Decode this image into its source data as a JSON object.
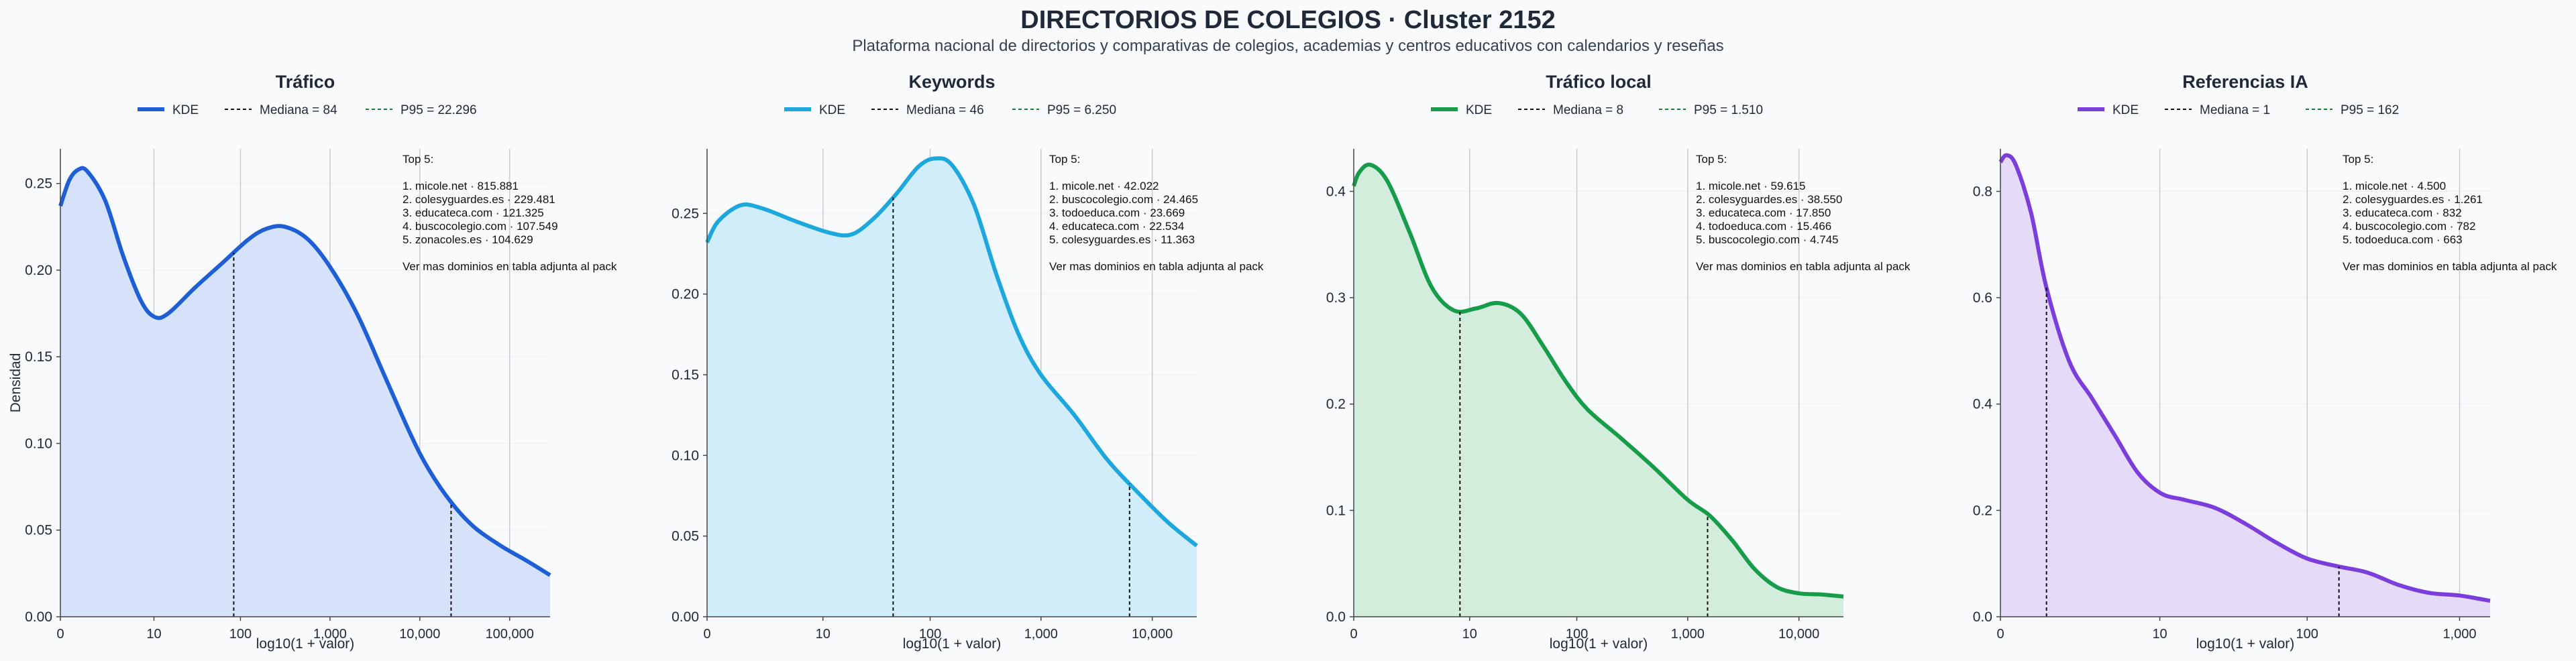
{
  "title": "DIRECTORIOS DE COLEGIOS · Cluster 2152",
  "subtitle": "Plataforma nacional de directorios y comparativas de colegios, academias y centros educativos con calendarios y reseñas",
  "ylabel_shared": "Densidad",
  "chart_data": [
    {
      "type": "area",
      "title": "Tráfico",
      "color": "#1f5fd6",
      "fill": "#d6e2fa",
      "xlabel": "log10(1 + valor)",
      "ylabel": "Densidad",
      "x_scale": "log10(1+x)",
      "xlim": [
        0,
        5.45
      ],
      "ylim": [
        0,
        0.27
      ],
      "xticks": [
        0,
        10,
        100,
        1000,
        10000,
        100000
      ],
      "xtick_labels": [
        "0",
        "10",
        "100",
        "1,000",
        "10,000",
        "100,000"
      ],
      "yticks": [
        0,
        0.05,
        0.1,
        0.15,
        0.2,
        0.25
      ],
      "ytick_labels": [
        "0.00",
        "0.05",
        "0.10",
        "0.15",
        "0.20",
        "0.25"
      ],
      "legend": {
        "kde": "KDE",
        "median": "Mediana = 84",
        "p95": "P95 = 22.296"
      },
      "median": 84,
      "p95": 22296,
      "x": [
        0,
        0.1,
        0.2,
        0.3,
        0.5,
        0.7,
        0.9,
        1.05,
        1.2,
        1.5,
        1.8,
        2.1,
        2.3,
        2.5,
        2.75,
        3.0,
        3.3,
        3.6,
        3.9,
        4.1,
        4.35,
        4.6,
        4.9,
        5.2,
        5.45
      ],
      "y": [
        0.237,
        0.252,
        0.258,
        0.257,
        0.24,
        0.208,
        0.182,
        0.173,
        0.175,
        0.19,
        0.204,
        0.218,
        0.224,
        0.225,
        0.218,
        0.202,
        0.175,
        0.14,
        0.105,
        0.085,
        0.066,
        0.052,
        0.041,
        0.032,
        0.024
      ],
      "annotation": [
        "Top 5:",
        "",
        "1. micole.net · 815.881",
        "2. colesyguardes.es · 229.481",
        "3. educateca.com · 121.325",
        "4. buscocolegio.com · 107.549",
        "5. zonacoles.es · 104.629",
        "",
        "Ver mas dominios en tabla adjunta al pack"
      ]
    },
    {
      "type": "area",
      "title": "Keywords",
      "color": "#1ca8dd",
      "fill": "#d2edfa",
      "xlabel": "log10(1 + valor)",
      "ylabel": "",
      "x_scale": "log10(1+x)",
      "xlim": [
        0,
        4.4
      ],
      "ylim": [
        0,
        0.29
      ],
      "xticks": [
        0,
        10,
        100,
        1000,
        10000
      ],
      "xtick_labels": [
        "0",
        "10",
        "100",
        "1,000",
        "10,000"
      ],
      "yticks": [
        0,
        0.05,
        0.1,
        0.15,
        0.2,
        0.25
      ],
      "ytick_labels": [
        "0.00",
        "0.05",
        "0.10",
        "0.15",
        "0.20",
        "0.25"
      ],
      "legend": {
        "kde": "KDE",
        "median": "Mediana = 46",
        "p95": "P95 = 6.250"
      },
      "median": 46,
      "p95": 6250,
      "x": [
        0,
        0.1,
        0.3,
        0.5,
        0.8,
        1.1,
        1.3,
        1.5,
        1.7,
        1.9,
        2.05,
        2.2,
        2.4,
        2.6,
        2.8,
        3.0,
        3.3,
        3.6,
        3.9,
        4.15,
        4.4
      ],
      "y": [
        0.232,
        0.245,
        0.255,
        0.253,
        0.245,
        0.238,
        0.237,
        0.247,
        0.262,
        0.279,
        0.284,
        0.28,
        0.255,
        0.212,
        0.175,
        0.15,
        0.125,
        0.097,
        0.075,
        0.058,
        0.044
      ],
      "annotation": [
        "Top 5:",
        "",
        "1. micole.net · 42.022",
        "2. buscocolegio.com · 24.465",
        "3. todoeduca.com · 23.669",
        "4. educateca.com · 22.534",
        "5. colesyguardes.es · 11.363",
        "",
        "Ver mas dominios en tabla adjunta al pack"
      ]
    },
    {
      "type": "area",
      "title": "Tráfico local",
      "color": "#179c4a",
      "fill": "#d2eddb",
      "xlabel": "log10(1 + valor)",
      "ylabel": "",
      "x_scale": "log10(1+x)",
      "xlim": [
        0,
        4.4
      ],
      "ylim": [
        0,
        0.44
      ],
      "xticks": [
        0,
        10,
        100,
        1000,
        10000
      ],
      "xtick_labels": [
        "0",
        "10",
        "100",
        "1,000",
        "10,000"
      ],
      "yticks": [
        0,
        0.1,
        0.2,
        0.3,
        0.4
      ],
      "ytick_labels": [
        "0.0",
        "0.1",
        "0.2",
        "0.3",
        "0.4"
      ],
      "legend": {
        "kde": "KDE",
        "median": "Mediana = 8",
        "p95": "P95 = 1.510"
      },
      "median": 8,
      "p95": 1510,
      "x": [
        0,
        0.05,
        0.15,
        0.3,
        0.5,
        0.7,
        0.9,
        1.1,
        1.3,
        1.5,
        1.7,
        1.9,
        2.1,
        2.4,
        2.7,
        3.0,
        3.2,
        3.4,
        3.6,
        3.8,
        4.0,
        4.2,
        4.4
      ],
      "y": [
        0.405,
        0.418,
        0.425,
        0.41,
        0.362,
        0.31,
        0.288,
        0.29,
        0.295,
        0.285,
        0.255,
        0.222,
        0.195,
        0.168,
        0.14,
        0.11,
        0.095,
        0.072,
        0.045,
        0.028,
        0.022,
        0.021,
        0.019
      ],
      "annotation": [
        "Top 5:",
        "",
        "1. micole.net · 59.615",
        "2. colesyguardes.es · 38.550",
        "3. educateca.com · 17.850",
        "4. todoeduca.com · 15.466",
        "5. buscocolegio.com · 4.745",
        "",
        "Ver mas dominios en tabla adjunta al pack"
      ]
    },
    {
      "type": "area",
      "title": "Referencias IA",
      "color": "#7b3ddb",
      "fill": "#e5daf8",
      "xlabel": "log10(1 + valor)",
      "ylabel": "",
      "x_scale": "log10(1+x)",
      "xlim": [
        0,
        3.2
      ],
      "ylim": [
        0,
        0.88
      ],
      "xticks": [
        0,
        10,
        100,
        1000
      ],
      "xtick_labels": [
        "0",
        "10",
        "100",
        "1,000"
      ],
      "yticks": [
        0,
        0.2,
        0.4,
        0.6,
        0.8
      ],
      "ytick_labels": [
        "0.0",
        "0.2",
        "0.4",
        "0.6",
        "0.8"
      ],
      "legend": {
        "kde": "KDE",
        "median": "Mediana = 1",
        "p95": "P95 = 162"
      },
      "median": 1,
      "p95": 162,
      "x": [
        0,
        0.04,
        0.1,
        0.2,
        0.3,
        0.45,
        0.6,
        0.75,
        0.9,
        1.05,
        1.2,
        1.4,
        1.6,
        1.8,
        2.0,
        2.2,
        2.4,
        2.6,
        2.8,
        3.0,
        3.2
      ],
      "y": [
        0.855,
        0.868,
        0.85,
        0.76,
        0.62,
        0.48,
        0.41,
        0.34,
        0.27,
        0.232,
        0.22,
        0.205,
        0.175,
        0.14,
        0.11,
        0.095,
        0.083,
        0.06,
        0.045,
        0.04,
        0.03
      ],
      "annotation": [
        "Top 5:",
        "",
        "1. micole.net · 4.500",
        "2. colesyguardes.es · 1.261",
        "3. educateca.com · 832",
        "4. buscocolegio.com · 782",
        "5. todoeduca.com · 663",
        "",
        "Ver mas dominios en tabla adjunta al pack"
      ]
    }
  ]
}
